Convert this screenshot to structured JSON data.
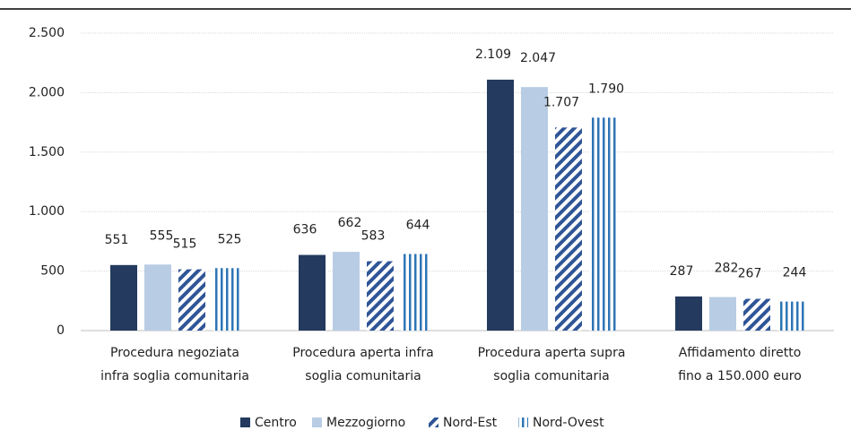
{
  "chart_data": {
    "type": "bar",
    "categories": [
      [
        "Procedura negoziata",
        "infra soglia comunitaria"
      ],
      [
        "Procedura aperta infra",
        "soglia comunitaria"
      ],
      [
        "Procedura aperta supra",
        "soglia comunitaria"
      ],
      [
        "Affidamento diretto",
        "fino a 150.000 euro"
      ]
    ],
    "series": [
      {
        "name": "Centro",
        "color": "#243a5e",
        "pattern": "solid",
        "values": [
          551,
          636,
          2109,
          287
        ],
        "value_labels": [
          "551",
          "636",
          "2.109",
          "287"
        ]
      },
      {
        "name": "Mezzogiorno",
        "color": "#b8cce4",
        "pattern": "solid",
        "values": [
          555,
          662,
          2047,
          282
        ],
        "value_labels": [
          "555",
          "662",
          "2.047",
          "282"
        ]
      },
      {
        "name": "Nord-Est",
        "color": "#2f5597",
        "pattern": "diagonal",
        "values": [
          515,
          583,
          1707,
          267
        ],
        "value_labels": [
          "515",
          "583",
          "1.707",
          "267"
        ]
      },
      {
        "name": "Nord-Ovest",
        "color": "#2e75b6",
        "pattern": "vertical",
        "values": [
          525,
          644,
          1790,
          244
        ],
        "value_labels": [
          "525",
          "644",
          "1.790",
          "244"
        ]
      }
    ],
    "ylim": [
      0,
      2500
    ],
    "yticks": [
      0,
      500,
      {
        "value": 1000,
        "label": "1.000"
      },
      {
        "value": 1500,
        "label": "1.500"
      },
      {
        "value": 2000,
        "label": "2.000"
      },
      {
        "value": 2500,
        "label": "2.500"
      }
    ],
    "grid": true
  }
}
